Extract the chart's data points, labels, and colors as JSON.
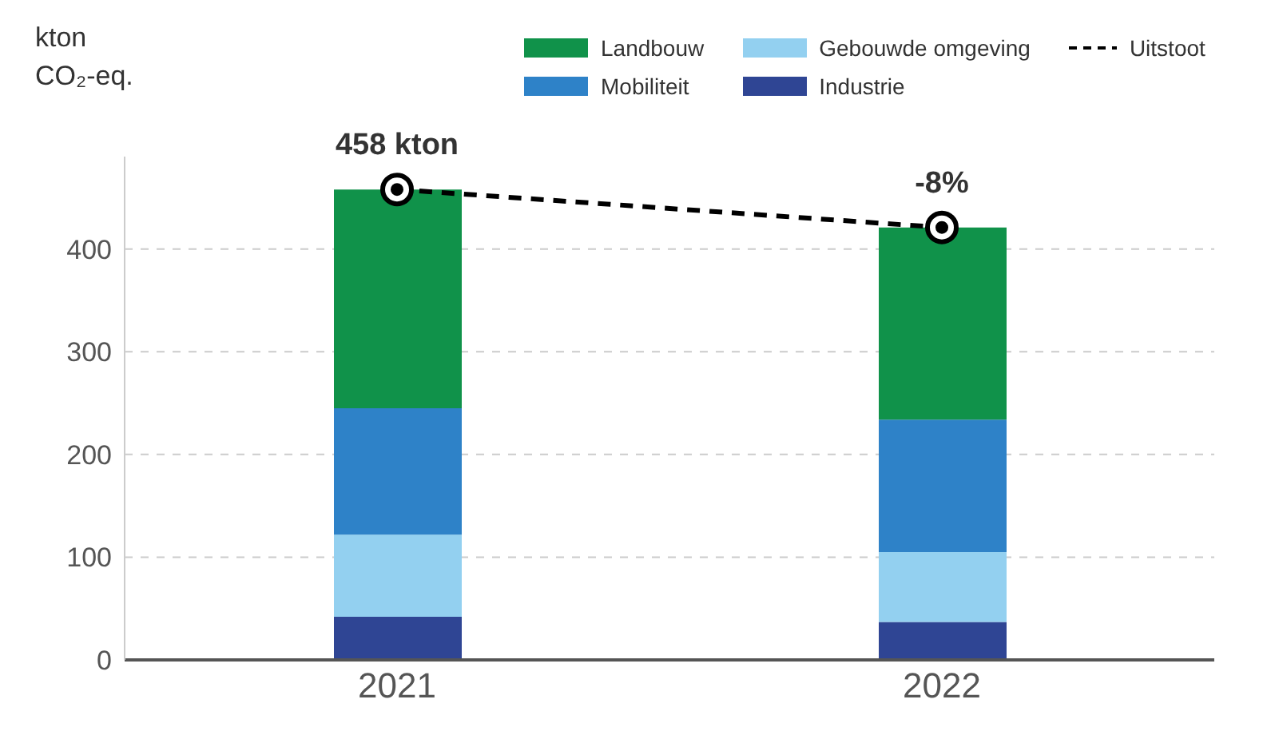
{
  "chart_data": {
    "type": "bar",
    "stacked": true,
    "ylabel": "kton CO₂-eq.",
    "categories": [
      "2021",
      "2022"
    ],
    "series": [
      {
        "name": "Industrie",
        "color": "#2f4594",
        "values": [
          42,
          37
        ]
      },
      {
        "name": "Gebouwde omgeving",
        "color": "#93d0f0",
        "values": [
          80,
          68
        ]
      },
      {
        "name": "Mobiliteit",
        "color": "#2e82c8",
        "values": [
          123,
          129
        ]
      },
      {
        "name": "Landbouw",
        "color": "#10924a",
        "values": [
          213,
          187
        ]
      },
      {
        "name": "Uitstoot",
        "type": "line",
        "color": "#000000",
        "line_style": "dashed",
        "marker": "circle",
        "values": [
          458,
          421
        ]
      }
    ],
    "annotations": [
      {
        "text": "458 kton",
        "x": "2021",
        "y": 458
      },
      {
        "text": "-8%",
        "x": "2022",
        "y": 421
      }
    ],
    "ylim": [
      0,
      490
    ],
    "yticks": [
      0,
      100,
      200,
      300,
      400
    ],
    "grid": "y",
    "legend": "top"
  }
}
